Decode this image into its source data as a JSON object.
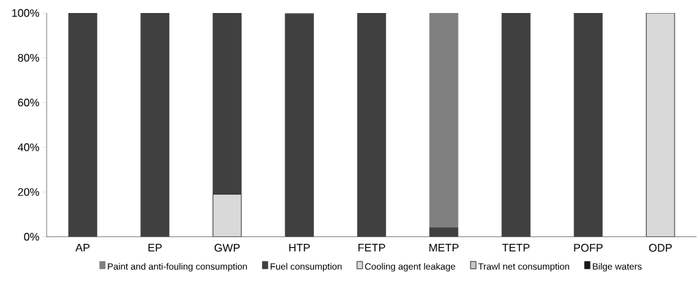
{
  "chart_data": {
    "type": "bar",
    "stacked": true,
    "categories": [
      "AP",
      "EP",
      "GWP",
      "HTP",
      "FETP",
      "METP",
      "TETP",
      "POFP",
      "ODP"
    ],
    "series": [
      {
        "name": "Bilge waters",
        "color": "#1a1a1a",
        "values": [
          0,
          0,
          0,
          0,
          0,
          0,
          0,
          0,
          0
        ]
      },
      {
        "name": "Trawl net consumption",
        "color": "#c8c8c8",
        "values": [
          0,
          0,
          0,
          0,
          0,
          0,
          0,
          0,
          0
        ]
      },
      {
        "name": "Cooling agent leakage",
        "color": "#d9d9d9",
        "values": [
          0,
          0,
          19,
          0,
          0,
          0,
          0,
          0,
          100
        ]
      },
      {
        "name": "Fuel consumption",
        "color": "#404040",
        "values": [
          100,
          100,
          81,
          99.5,
          100,
          4,
          100,
          100,
          0
        ]
      },
      {
        "name": "Paint and anti-fouling consumption",
        "color": "#808080",
        "values": [
          0,
          0,
          0,
          0.5,
          0,
          96,
          0,
          0,
          0
        ]
      }
    ],
    "ylim": [
      0,
      100
    ],
    "yticks": [
      {
        "value": 0,
        "label": "0%"
      },
      {
        "value": 20,
        "label": "20%"
      },
      {
        "value": 40,
        "label": "40%"
      },
      {
        "value": 60,
        "label": "60%"
      },
      {
        "value": 80,
        "label": "80%"
      },
      {
        "value": 100,
        "label": "100%"
      }
    ],
    "grid": false,
    "legend": "bottom"
  }
}
